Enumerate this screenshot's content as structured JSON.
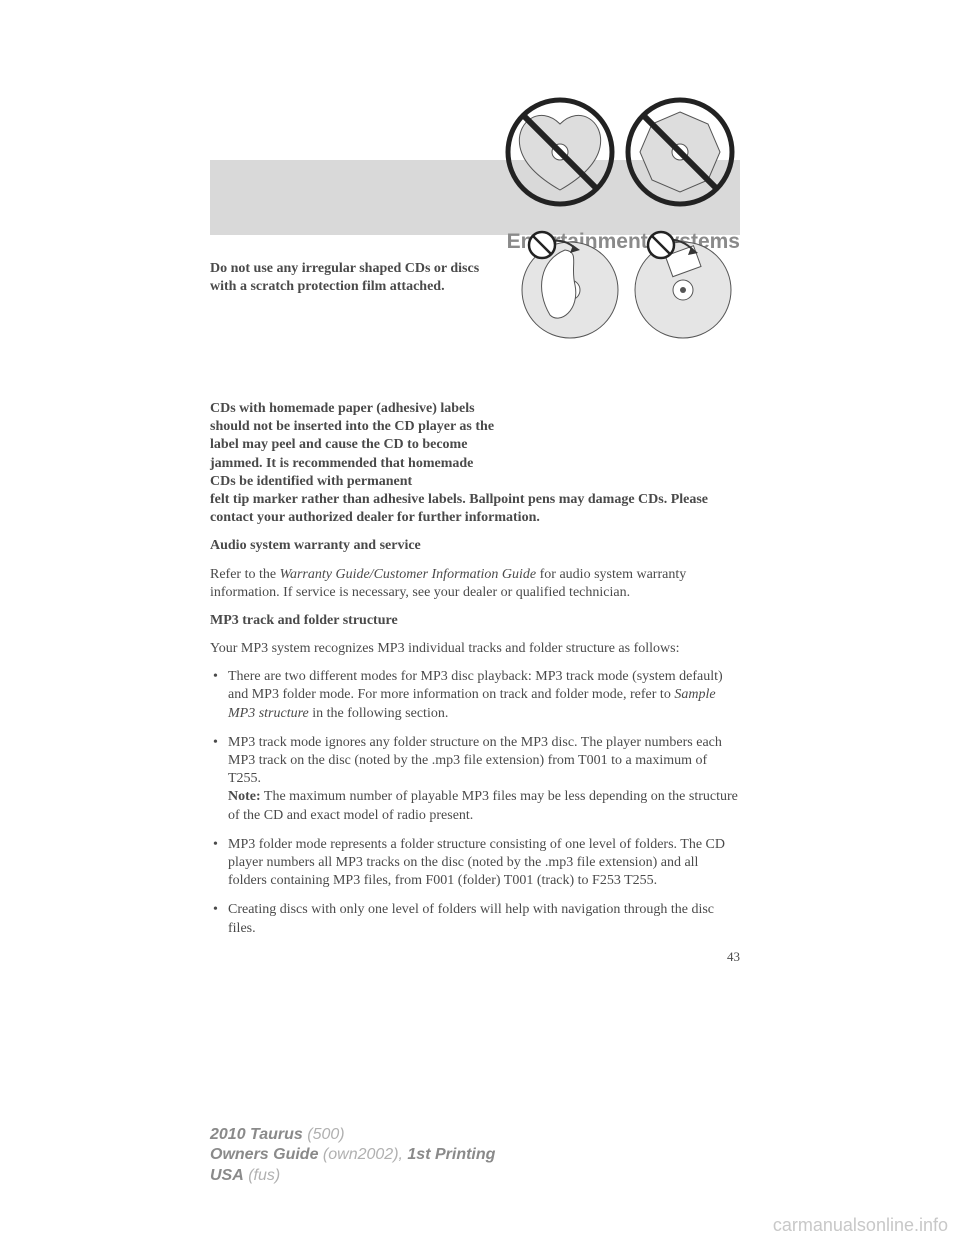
{
  "header": {
    "section_title": "Entertainment Systems"
  },
  "colors": {
    "gray_block": "#d9d9d9",
    "title_gray": "#8a8a8a",
    "body_text": "#4a4a4a",
    "footer_bold": "#8a8a8a",
    "footer_light": "#b0b0b0",
    "watermark": "#c8c8c8"
  },
  "body": {
    "p1": "Do not use any irregular shaped CDs or discs with a scratch protection film attached.",
    "p2": "CDs with homemade paper (adhesive) labels should not be inserted into the CD player as the label may peel and cause the CD to become jammed. It is recommended that homemade CDs be identified with permanent felt tip marker rather than adhesive labels. Ballpoint pens may damage CDs. Please contact your authorized dealer for further information.",
    "h3": "Audio system warranty and service",
    "p3a": "Refer to the ",
    "p3i": "Warranty Guide/Customer Information Guide",
    "p3b": " for audio system warranty information. If service is necessary, see your dealer or qualified technician.",
    "h4": "MP3 track and folder structure",
    "p4": "Your MP3 system recognizes MP3 individual tracks and folder structure as follows:",
    "bullets": [
      {
        "pre": "There are two different modes for MP3 disc playback: MP3 track mode (system default) and MP3 folder mode. For more information on track and folder mode, refer to ",
        "italic": "Sample MP3 structure",
        "post": " in the following section."
      },
      {
        "pre": "MP3 track mode ignores any folder structure on the MP3 disc. The player numbers each MP3 track on the disc (noted by the .mp3 file extension) from T001 to a maximum of T255.\n",
        "note_label": "Note:",
        "note_text": " The maximum number of playable MP3 files may be less depending on the structure of the CD and exact model of radio present."
      },
      {
        "pre": "MP3 folder mode represents a folder structure consisting of one level of folders. The CD player numbers all MP3 tracks on the disc (noted by the .mp3 file extension) and all folders containing MP3 files, from F001 (folder) T001 (track) to F253 T255."
      },
      {
        "pre": "Creating discs with only one level of folders will help with navigation through the disc files."
      }
    ],
    "page_number": "43"
  },
  "footer": {
    "model": "2010 Taurus",
    "model_code": " (500)",
    "guide": "Owners Guide",
    "guide_code": " (own2002)",
    "comma": ", ",
    "printing": "1st Printing",
    "region": "USA",
    "region_code": " (fus)"
  },
  "watermark": "carmanualsonline.info",
  "figures": {
    "fig1": {
      "type": "prohibited-cd-shapes",
      "items": [
        "heart-cd",
        "octagon-cd"
      ]
    },
    "fig2": {
      "type": "prohibited-cd-labels",
      "items": [
        "peeling-label",
        "sticker-label"
      ]
    }
  }
}
